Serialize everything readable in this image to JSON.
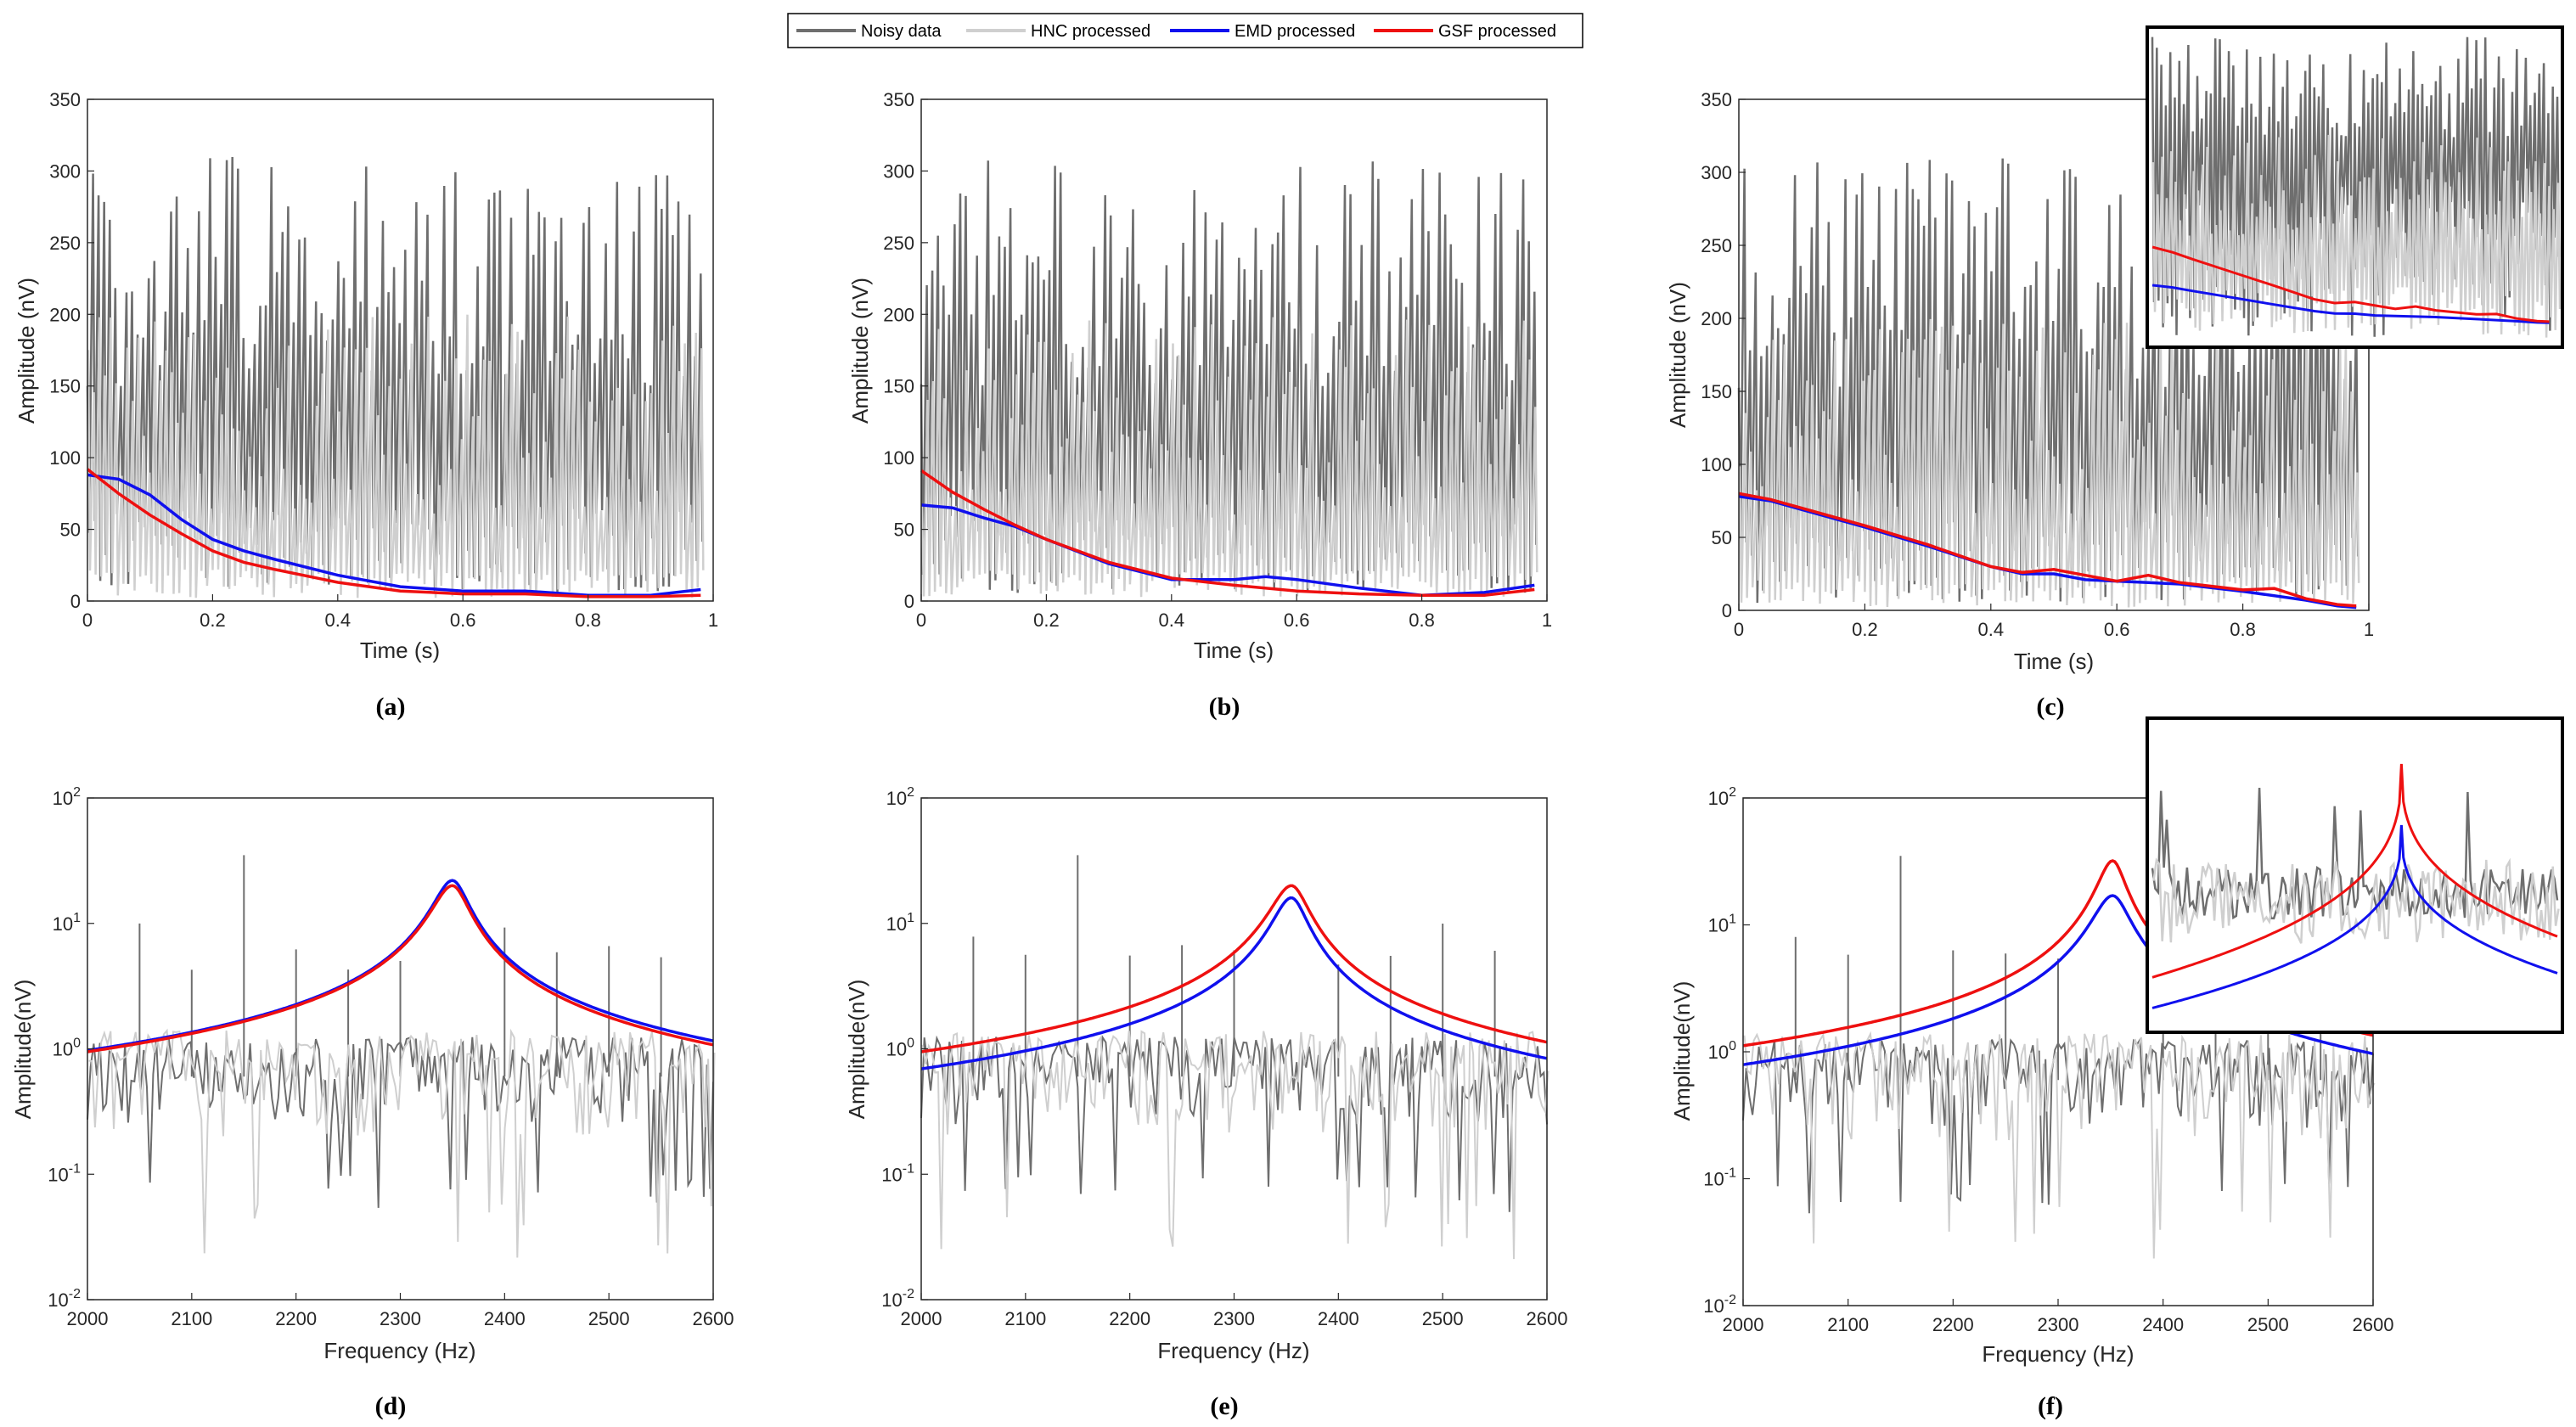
{
  "legend": {
    "entries": [
      {
        "label": "Noisy data",
        "color": "#6e6e6e"
      },
      {
        "label": "HNC processed",
        "color": "#cfcfcf"
      },
      {
        "label": "EMD processed",
        "color": "#1010ee"
      },
      {
        "label": "GSF processed",
        "color": "#ee1010"
      }
    ]
  },
  "chart_data": [
    {
      "id": "a",
      "panel_label": "(a)",
      "type": "line",
      "xlabel": "Time (s)",
      "ylabel": "Amplitude (nV)",
      "xlim": [
        0,
        1
      ],
      "ylim": [
        0,
        350
      ],
      "yscale": "linear",
      "xticks": [
        "0",
        "0.2",
        "0.4",
        "0.6",
        "0.8",
        "1"
      ],
      "yticks": [
        "0",
        "50",
        "100",
        "150",
        "200",
        "250",
        "300",
        "350"
      ],
      "series": [
        {
          "name": "EMD processed",
          "x": [
            0,
            0.05,
            0.1,
            0.15,
            0.2,
            0.25,
            0.3,
            0.4,
            0.5,
            0.6,
            0.7,
            0.8,
            0.9,
            0.98
          ],
          "y": [
            88,
            85,
            74,
            57,
            43,
            35,
            29,
            18,
            10,
            7,
            7,
            4,
            4,
            8
          ]
        },
        {
          "name": "GSF processed",
          "x": [
            0,
            0.05,
            0.1,
            0.15,
            0.2,
            0.25,
            0.3,
            0.4,
            0.5,
            0.6,
            0.7,
            0.8,
            0.9,
            0.98
          ],
          "y": [
            92,
            75,
            60,
            47,
            35,
            27,
            22,
            13,
            7,
            5,
            5,
            3,
            3,
            4
          ]
        }
      ]
    },
    {
      "id": "b",
      "panel_label": "(b)",
      "type": "line",
      "xlabel": "Time (s)",
      "ylabel": "Amplitude (nV)",
      "xlim": [
        0,
        1
      ],
      "ylim": [
        0,
        350
      ],
      "yscale": "linear",
      "xticks": [
        "0",
        "0.2",
        "0.4",
        "0.6",
        "0.8",
        "1"
      ],
      "yticks": [
        "0",
        "50",
        "100",
        "150",
        "200",
        "250",
        "300",
        "350"
      ],
      "series": [
        {
          "name": "EMD processed",
          "x": [
            0,
            0.05,
            0.1,
            0.15,
            0.2,
            0.3,
            0.4,
            0.5,
            0.55,
            0.6,
            0.7,
            0.8,
            0.9,
            0.98
          ],
          "y": [
            67,
            65,
            58,
            52,
            43,
            26,
            15,
            15,
            17,
            15,
            9,
            4,
            6,
            11
          ]
        },
        {
          "name": "GSF processed",
          "x": [
            0,
            0.05,
            0.1,
            0.15,
            0.2,
            0.3,
            0.4,
            0.5,
            0.6,
            0.7,
            0.8,
            0.9,
            0.98
          ],
          "y": [
            91,
            76,
            64,
            53,
            43,
            27,
            16,
            11,
            7,
            5,
            4,
            4,
            8
          ]
        }
      ]
    },
    {
      "id": "c",
      "panel_label": "(c)",
      "type": "line",
      "xlabel": "Time (s)",
      "ylabel": "Amplitude (nV)",
      "xlim": [
        0,
        1
      ],
      "ylim": [
        0,
        350
      ],
      "yscale": "linear",
      "xticks": [
        "0",
        "0.2",
        "0.4",
        "0.6",
        "0.8",
        "1"
      ],
      "yticks": [
        "0",
        "50",
        "100",
        "150",
        "200",
        "250",
        "300",
        "350"
      ],
      "has_inset": true,
      "series": [
        {
          "name": "EMD processed",
          "x": [
            0,
            0.05,
            0.1,
            0.2,
            0.3,
            0.4,
            0.45,
            0.5,
            0.55,
            0.6,
            0.65,
            0.7,
            0.8,
            0.9,
            0.95,
            0.98
          ],
          "y": [
            78,
            75,
            69,
            57,
            44,
            30,
            25,
            25,
            21,
            20,
            19,
            18,
            13,
            7,
            3,
            2
          ]
        },
        {
          "name": "GSF processed",
          "x": [
            0,
            0.05,
            0.1,
            0.2,
            0.3,
            0.4,
            0.45,
            0.5,
            0.55,
            0.6,
            0.65,
            0.7,
            0.8,
            0.85,
            0.9,
            0.95,
            0.98
          ],
          "y": [
            80,
            76,
            70,
            58,
            45,
            30,
            26,
            28,
            24,
            20,
            24,
            19,
            14,
            15,
            8,
            4,
            3
          ]
        }
      ]
    },
    {
      "id": "d",
      "panel_label": "(d)",
      "type": "line",
      "xlabel": "Frequency (Hz)",
      "ylabel": "Amplitude(nV)",
      "xlim": [
        2000,
        2600
      ],
      "ylim": [
        0.01,
        100
      ],
      "yscale": "log",
      "xticks": [
        "2000",
        "2100",
        "2200",
        "2300",
        "2400",
        "2500",
        "2600"
      ],
      "yticks": [
        "10",
        "10",
        "10",
        "10",
        "10"
      ],
      "yticks_exp": [
        "-2",
        "-1",
        "0",
        "1",
        "2"
      ],
      "series": [
        {
          "name": "EMD processed",
          "f0": 2350,
          "peak": 22,
          "ends": [
            0.043,
            0.061
          ]
        },
        {
          "name": "GSF processed",
          "f0": 2350,
          "peak": 20,
          "ends": [
            0.045,
            0.058
          ]
        }
      ]
    },
    {
      "id": "e",
      "panel_label": "(e)",
      "type": "line",
      "xlabel": "Frequency (Hz)",
      "ylabel": "Amplitude(nV)",
      "xlim": [
        2000,
        2600
      ],
      "ylim": [
        0.01,
        100
      ],
      "yscale": "log",
      "xticks": [
        "2000",
        "2100",
        "2200",
        "2300",
        "2400",
        "2500",
        "2600"
      ],
      "yticks": [
        "10",
        "10",
        "10",
        "10",
        "10"
      ],
      "yticks_exp": [
        "-2",
        "-1",
        "0",
        "1",
        "2"
      ],
      "series": [
        {
          "name": "EMD processed",
          "f0": 2355,
          "peak": 16,
          "ends": [
            0.03,
            0.044
          ]
        },
        {
          "name": "GSF processed",
          "f0": 2355,
          "peak": 20,
          "ends": [
            0.045,
            0.064
          ]
        }
      ]
    },
    {
      "id": "f",
      "panel_label": "(f)",
      "type": "line",
      "xlabel": "Frequency (Hz)",
      "ylabel": "Amplitude(nV)",
      "xlim": [
        2000,
        2600
      ],
      "ylim": [
        0.01,
        100
      ],
      "yscale": "log",
      "xticks": [
        "2000",
        "2100",
        "2200",
        "2300",
        "2400",
        "2500",
        "2600"
      ],
      "yticks": [
        "10",
        "10",
        "10",
        "10",
        "10"
      ],
      "yticks_exp": [
        "-2",
        "-1",
        "0",
        "1",
        "2"
      ],
      "has_inset": true,
      "series": [
        {
          "name": "EMD processed",
          "f0": 2352,
          "peak": 17,
          "ends": [
            0.037,
            0.055
          ]
        },
        {
          "name": "GSF processed",
          "f0": 2352,
          "peak": 32,
          "ends": [
            0.039,
            0.057
          ]
        }
      ]
    }
  ]
}
